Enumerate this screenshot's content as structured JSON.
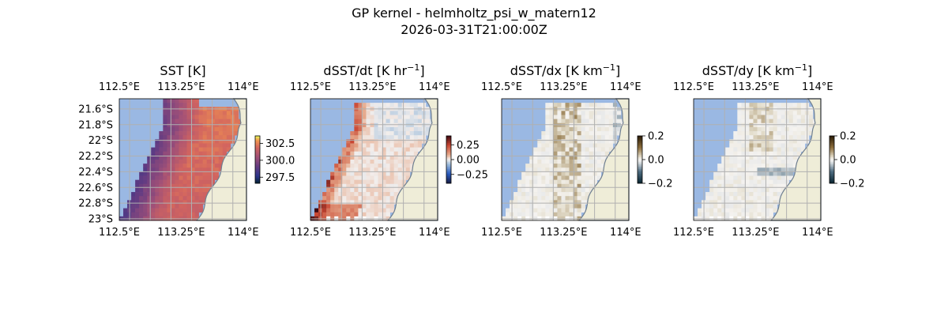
{
  "figure": {
    "title": "GP kernel - helmholtz_psi_w_matern12",
    "subtitle": "2026-03-31T21:00:00Z"
  },
  "colors": {
    "ocean": "#9ab8e3",
    "land": "#efedd8",
    "coast": "#6f7f90",
    "grid": "#b0b0b0",
    "nodata": "#ffffff"
  },
  "chart_data": [
    {
      "type": "heatmap",
      "title": "SST [K]",
      "title_sup": "",
      "title_end": "",
      "variable": "sst",
      "colormap": "thermal",
      "vmin": 296.6,
      "vmax": 303.6,
      "colorbar_ticks": [
        302.5,
        300.0,
        297.5
      ],
      "colorbar_tick_labels": [
        "302.5",
        "300.0",
        "297.5"
      ],
      "xlim": [
        112.5,
        114.04
      ],
      "ylim": [
        -23.02,
        -21.47
      ],
      "x_ticks": [
        112.5,
        113.25,
        114.0
      ],
      "x_tick_labels": [
        "112.5°E",
        "113.25°E",
        "114°E"
      ],
      "y_ticks": [
        -21.6,
        -21.8,
        -22.0,
        -22.2,
        -22.4,
        -22.6,
        -22.8,
        -23.0
      ],
      "y_tick_labels": [
        "21.6°S",
        "21.8°S",
        "22°S",
        "22.2°S",
        "22.4°S",
        "22.6°S",
        "22.8°S",
        "23°S"
      ],
      "show_y_labels": true,
      "grid": true
    },
    {
      "type": "heatmap",
      "title": "dSST/dt [K hr",
      "title_sup": "−1",
      "title_end": "]",
      "variable": "dsst_dt",
      "colormap": "balance",
      "vmin": -0.4,
      "vmax": 0.4,
      "colorbar_ticks": [
        0.25,
        0.0,
        -0.25
      ],
      "colorbar_tick_labels": [
        "0.25",
        "0.00",
        "−0.25"
      ],
      "xlim": [
        112.5,
        114.04
      ],
      "ylim": [
        -23.02,
        -21.47
      ],
      "x_ticks": [
        112.5,
        113.25,
        114.0
      ],
      "x_tick_labels": [
        "112.5°E",
        "113.25°E",
        "114°E"
      ],
      "show_y_labels": false,
      "grid": true
    },
    {
      "type": "heatmap",
      "title": "dSST/dx [K km",
      "title_sup": "−1",
      "title_end": "]",
      "variable": "dsst_dx",
      "colormap": "diff",
      "vmin": -0.2,
      "vmax": 0.2,
      "colorbar_ticks": [
        0.2,
        0.0,
        -0.2
      ],
      "colorbar_tick_labels": [
        "0.2",
        "0.0",
        "−0.2"
      ],
      "xlim": [
        112.5,
        114.04
      ],
      "ylim": [
        -23.02,
        -21.47
      ],
      "x_ticks": [
        112.5,
        113.25,
        114.0
      ],
      "x_tick_labels": [
        "112.5°E",
        "113.25°E",
        "114°E"
      ],
      "show_y_labels": false,
      "grid": true
    },
    {
      "type": "heatmap",
      "title": "dSST/dy [K km",
      "title_sup": "−1",
      "title_end": "]",
      "variable": "dsst_dy",
      "colormap": "diff",
      "vmin": -0.2,
      "vmax": 0.2,
      "colorbar_ticks": [
        0.2,
        0.0,
        -0.2
      ],
      "colorbar_tick_labels": [
        "0.2",
        "0.0",
        "−0.2"
      ],
      "xlim": [
        112.5,
        114.04
      ],
      "ylim": [
        -23.02,
        -21.47
      ],
      "x_ticks": [
        112.5,
        113.25,
        114.0
      ],
      "x_tick_labels": [
        "112.5°E",
        "113.25°E",
        "114°E"
      ],
      "show_y_labels": false,
      "grid": true
    }
  ]
}
